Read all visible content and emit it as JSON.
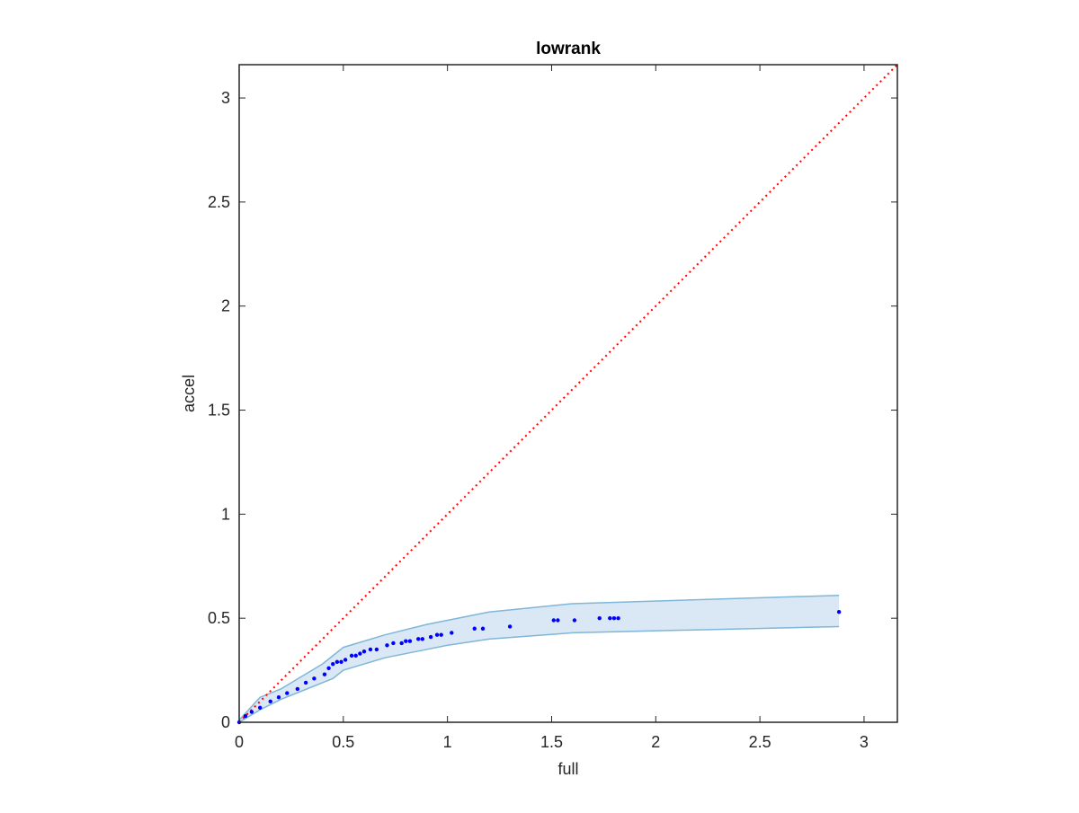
{
  "chart_data": {
    "type": "scatter",
    "title": "lowrank",
    "x_label": "full",
    "y_label": "accel",
    "xlim": [
      0,
      3.16
    ],
    "ylim": [
      0,
      3.16
    ],
    "xticks": [
      0,
      0.5,
      1,
      1.5,
      2,
      2.5,
      3
    ],
    "yticks": [
      0,
      0.5,
      1,
      1.5,
      2,
      2.5,
      3
    ],
    "color": "#0000ff",
    "x": [
      0.0,
      0.03,
      0.06,
      0.1,
      0.15,
      0.19,
      0.23,
      0.28,
      0.32,
      0.36,
      0.41,
      0.43,
      0.45,
      0.47,
      0.49,
      0.51,
      0.54,
      0.56,
      0.58,
      0.6,
      0.63,
      0.66,
      0.71,
      0.74,
      0.78,
      0.8,
      0.82,
      0.86,
      0.88,
      0.92,
      0.95,
      0.97,
      1.02,
      1.13,
      1.17,
      1.3,
      1.51,
      1.53,
      1.61,
      1.73,
      1.78,
      1.8,
      1.82,
      2.88
    ],
    "y": [
      0.0,
      0.03,
      0.05,
      0.07,
      0.1,
      0.12,
      0.14,
      0.16,
      0.19,
      0.21,
      0.23,
      0.26,
      0.28,
      0.29,
      0.29,
      0.3,
      0.32,
      0.32,
      0.33,
      0.34,
      0.35,
      0.35,
      0.37,
      0.38,
      0.38,
      0.39,
      0.39,
      0.4,
      0.4,
      0.41,
      0.42,
      0.42,
      0.43,
      0.45,
      0.45,
      0.46,
      0.49,
      0.49,
      0.49,
      0.5,
      0.5,
      0.5,
      0.5,
      0.53
    ],
    "band": {
      "color": "#7fb6d9",
      "fill": "#d9e8f4",
      "x": [
        0,
        0.1,
        0.2,
        0.3,
        0.4,
        0.45,
        0.5,
        0.7,
        0.9,
        1.0,
        1.2,
        1.6,
        2.88
      ],
      "upper": [
        0.01,
        0.12,
        0.16,
        0.22,
        0.28,
        0.32,
        0.36,
        0.42,
        0.47,
        0.49,
        0.53,
        0.57,
        0.61
      ],
      "lower": [
        0,
        0.06,
        0.11,
        0.15,
        0.19,
        0.21,
        0.25,
        0.31,
        0.35,
        0.37,
        0.4,
        0.43,
        0.46
      ]
    },
    "diagonal": {
      "color": "#ff0000",
      "x": [
        0,
        3.16
      ],
      "y": [
        0,
        3.16
      ]
    }
  }
}
